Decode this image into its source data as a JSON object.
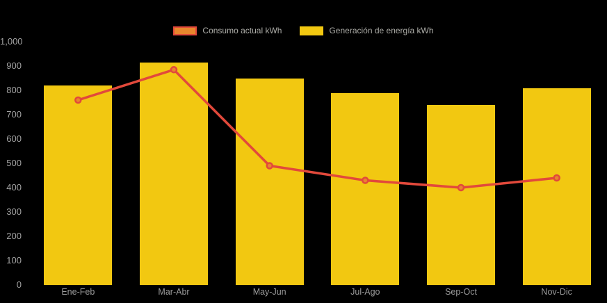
{
  "chart": {
    "background_color": "#000000",
    "axis_text_color": "#A3A3A3",
    "x_axis_text_color": "#9C9C9C",
    "legend_text_color": "#ADADA8"
  },
  "chart_data": {
    "type": "bar+line",
    "title": "",
    "xlabel": "",
    "ylabel": "",
    "categories": [
      "Ene-Feb",
      "Mar-Abr",
      "May-Jun",
      "Jul-Ago",
      "Sep-Oct",
      "Nov-Dic"
    ],
    "series": [
      {
        "name": "Consumo actual kWh",
        "type": "line",
        "color": "#E2493B",
        "marker_fill": "#E8862D",
        "values": [
          760,
          885,
          490,
          430,
          400,
          440
        ]
      },
      {
        "name": "Generación de energía kWh",
        "type": "bar",
        "color": "#F2C811",
        "values": [
          820,
          915,
          850,
          790,
          740,
          810
        ]
      }
    ],
    "ylim": [
      0,
      1000
    ],
    "ytick_values": [
      0,
      100,
      200,
      300,
      400,
      500,
      600,
      700,
      800,
      900,
      1000
    ],
    "ytick_labels": [
      "0",
      "100",
      "200",
      "300",
      "400",
      "500",
      "600",
      "700",
      "800",
      "900",
      "1,000"
    ],
    "grid": false,
    "legend_position": "top-center",
    "background": "#000000"
  }
}
